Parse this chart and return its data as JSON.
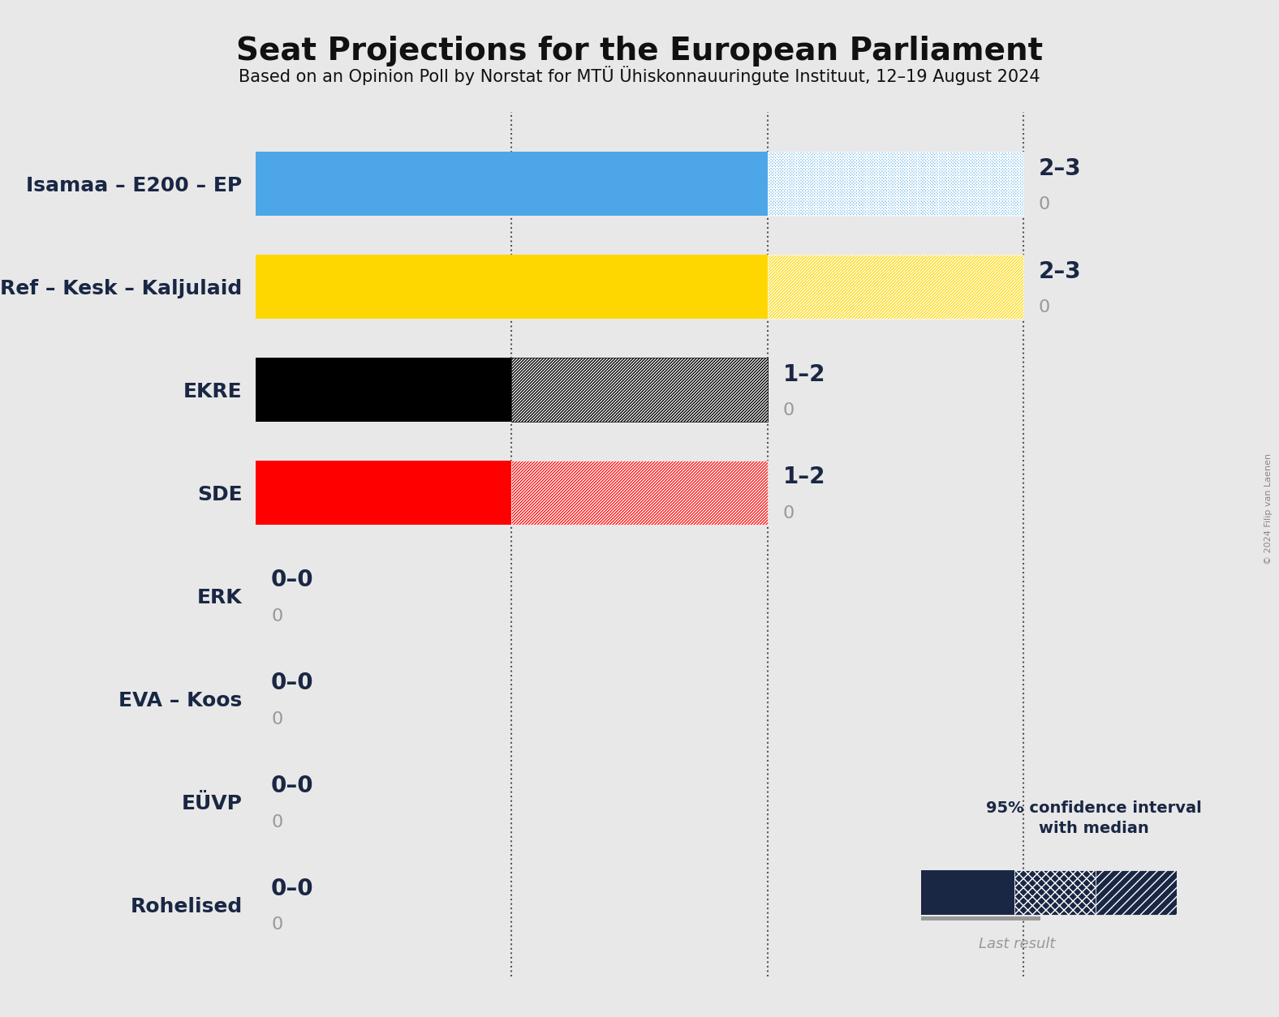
{
  "title": "Seat Projections for the European Parliament",
  "subtitle": "Based on an Opinion Poll by Norstat for MTÜ Ühiskonnauuringute Instituut, 12–19 August 2024",
  "copyright": "© 2024 Filip van Laenen",
  "background_color": "#e8e8e8",
  "parties": [
    {
      "name": "Isamaa – E200 – EP",
      "color": "#4da6e8",
      "median": 2,
      "low": 2,
      "high": 3,
      "last": 0,
      "label": "2–3",
      "hatch": "xxx"
    },
    {
      "name": "Ref – Kesk – Kaljulaid",
      "color": "#FFD700",
      "median": 2,
      "low": 2,
      "high": 3,
      "last": 0,
      "label": "2–3",
      "hatch": "///"
    },
    {
      "name": "EKRE",
      "color": "#000000",
      "median": 1,
      "low": 1,
      "high": 2,
      "last": 0,
      "label": "1–2",
      "hatch": "///"
    },
    {
      "name": "SDE",
      "color": "#ff0000",
      "median": 1,
      "low": 1,
      "high": 2,
      "last": 0,
      "label": "1–2",
      "hatch": "///"
    },
    {
      "name": "ERK",
      "color": "#4da6e8",
      "median": 0,
      "low": 0,
      "high": 0,
      "last": 0,
      "label": "0–0",
      "hatch": "///"
    },
    {
      "name": "EVA – Koos",
      "color": "#4da6e8",
      "median": 0,
      "low": 0,
      "high": 0,
      "last": 0,
      "label": "0–0",
      "hatch": "///"
    },
    {
      "name": "EÜVP",
      "color": "#4da6e8",
      "median": 0,
      "low": 0,
      "high": 0,
      "last": 0,
      "label": "0–0",
      "hatch": "///"
    },
    {
      "name": "Rohelised",
      "color": "#4da6e8",
      "median": 0,
      "low": 0,
      "high": 0,
      "last": 0,
      "label": "0–0",
      "hatch": "///"
    }
  ],
  "xmax": 3.5,
  "dotted_lines": [
    1,
    2,
    3
  ],
  "label_color": "#1a2744",
  "last_color": "#999999",
  "legend_dark_color": "#1a2744"
}
